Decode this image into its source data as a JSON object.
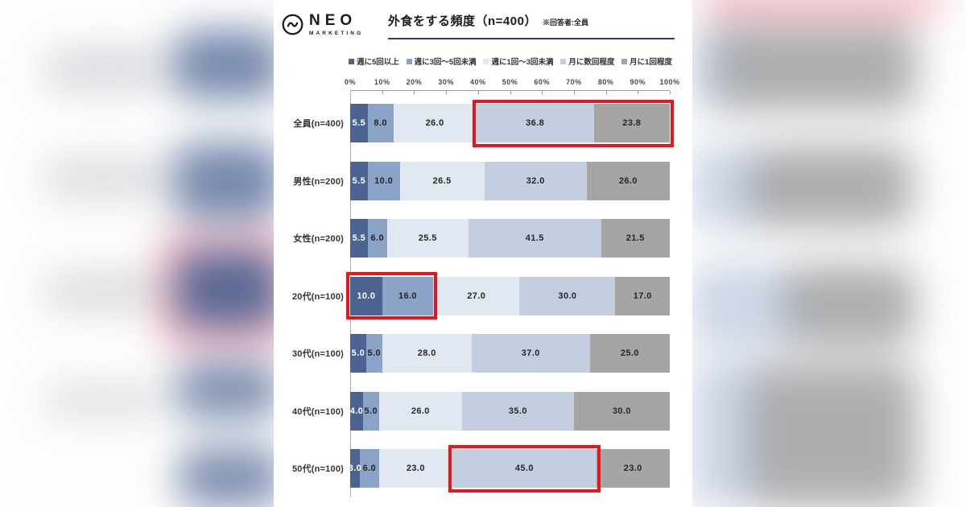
{
  "header": {
    "logo": {
      "brand": "NEO",
      "subtitle": "MARKETING",
      "icon": "wave-circle-icon"
    },
    "title": "外食をする頻度（n=400）",
    "note": "※回答者:全員",
    "accent_underline_color": "#2c3a96"
  },
  "chart_data": {
    "type": "bar",
    "stacked": true,
    "orientation": "horizontal",
    "title": "外食をする頻度（n=400）",
    "unit": "%",
    "xlim": [
      0,
      100
    ],
    "x_ticks": [
      "0%",
      "10%",
      "20%",
      "30%",
      "40%",
      "50%",
      "60%",
      "70%",
      "80%",
      "90%",
      "100%"
    ],
    "grid": false,
    "legend_position": "top",
    "legend": [
      "週に5回以上",
      "週に3回～5回未満",
      "週に1回～3回未満",
      "月に数回程度",
      "月に1回程度"
    ],
    "segment_colors": [
      "#4a6391",
      "#8ba3c7",
      "#e1e8f1",
      "#c3cfe0",
      "#a7a5a3"
    ],
    "value_text_colors": [
      "#ffffff",
      "#262626",
      "#262626",
      "#262626",
      "#262626"
    ],
    "categories": [
      "全員(n=400)",
      "男性(n=200)",
      "女性(n=200)",
      "20代(n=100)",
      "30代(n=100)",
      "40代(n=100)",
      "50代(n=100)"
    ],
    "series": [
      {
        "name": "週に5回以上",
        "values": [
          5.5,
          5.5,
          5.5,
          10.0,
          5.0,
          4.0,
          3.0
        ]
      },
      {
        "name": "週に3回～5回未満",
        "values": [
          8.0,
          10.0,
          6.0,
          16.0,
          5.0,
          5.0,
          6.0
        ]
      },
      {
        "name": "週に1回～3回未満",
        "values": [
          26.0,
          26.5,
          25.5,
          27.0,
          28.0,
          26.0,
          23.0
        ]
      },
      {
        "name": "月に数回程度",
        "values": [
          36.8,
          32.0,
          41.5,
          30.0,
          37.0,
          35.0,
          45.0
        ]
      },
      {
        "name": "月に1回程度",
        "values": [
          23.8,
          26.0,
          21.5,
          17.0,
          25.0,
          30.0,
          23.0
        ]
      }
    ],
    "highlights": [
      {
        "row_index": 0,
        "segment_from": 3,
        "segment_to": 4
      },
      {
        "row_index": 3,
        "segment_from": 0,
        "segment_to": 1
      },
      {
        "row_index": 6,
        "segment_from": 3,
        "segment_to": 3
      }
    ],
    "highlight_color": "#e8151a"
  }
}
